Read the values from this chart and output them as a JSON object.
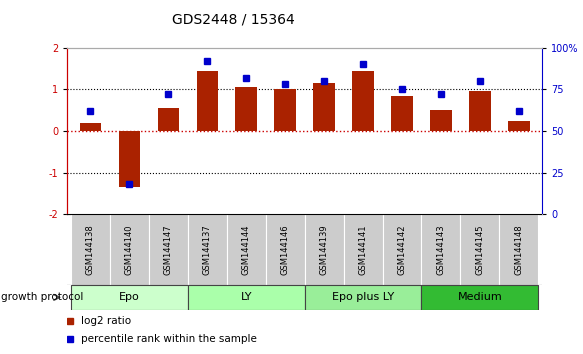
{
  "title": "GDS2448 / 15364",
  "samples": [
    "GSM144138",
    "GSM144140",
    "GSM144147",
    "GSM144137",
    "GSM144144",
    "GSM144146",
    "GSM144139",
    "GSM144141",
    "GSM144142",
    "GSM144143",
    "GSM144145",
    "GSM144148"
  ],
  "log2_ratio": [
    0.2,
    -1.35,
    0.55,
    1.45,
    1.05,
    1.02,
    1.15,
    1.45,
    0.85,
    0.5,
    0.95,
    0.25
  ],
  "percentile_rank": [
    62,
    18,
    72,
    92,
    82,
    78,
    80,
    90,
    75,
    72,
    80,
    62
  ],
  "bar_color": "#aa2200",
  "dot_color": "#0000cc",
  "ylim_left": [
    -2,
    2
  ],
  "ylim_right": [
    0,
    100
  ],
  "yticks_left": [
    -2,
    -1,
    0,
    1,
    2
  ],
  "yticks_right": [
    0,
    25,
    50,
    75,
    100
  ],
  "ytick_labels_right": [
    "0",
    "25",
    "50",
    "75",
    "100%"
  ],
  "zero_line_color": "#cc0000",
  "dotted_line_color": "#000000",
  "groups": [
    {
      "label": "Epo",
      "start": 0,
      "end": 3,
      "color": "#ccffcc"
    },
    {
      "label": "LY",
      "start": 3,
      "end": 6,
      "color": "#aaffaa"
    },
    {
      "label": "Epo plus LY",
      "start": 6,
      "end": 9,
      "color": "#99ee99"
    },
    {
      "label": "Medium",
      "start": 9,
      "end": 12,
      "color": "#33bb33"
    }
  ],
  "group_label": "growth protocol",
  "legend_bar_label": "log2 ratio",
  "legend_dot_label": "percentile rank within the sample",
  "bg_color": "#ffffff",
  "plot_bg": "#ffffff",
  "title_fontsize": 10,
  "tick_label_fontsize": 7,
  "sample_label_fontsize": 6,
  "group_label_fontsize": 8,
  "legend_fontsize": 7.5
}
